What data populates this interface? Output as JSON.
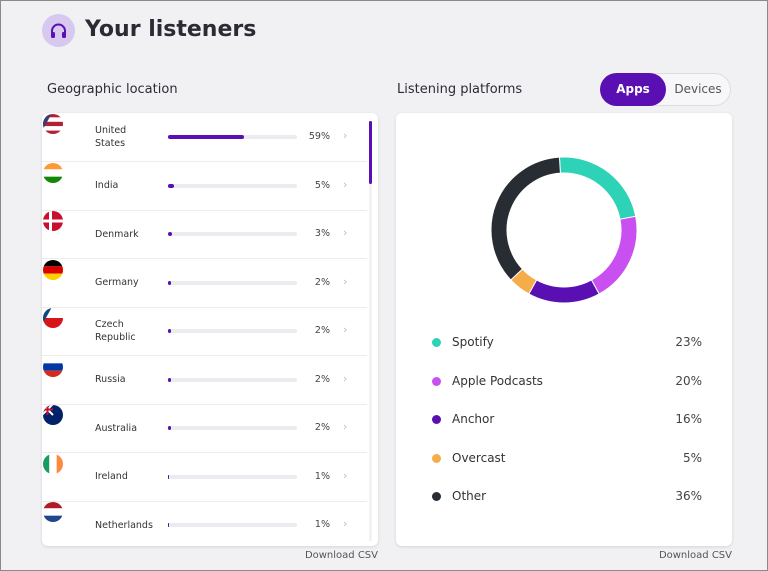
{
  "header": {
    "title": "Your listeners"
  },
  "geographic": {
    "title": "Geographic location",
    "countries": [
      {
        "name": "United States",
        "value": 59,
        "value_label": "59%"
      },
      {
        "name": "India",
        "value": 5,
        "value_label": "5%"
      },
      {
        "name": "Denmark",
        "value": 3,
        "value_label": "3%"
      },
      {
        "name": "Germany",
        "value": 2,
        "value_label": "2%"
      },
      {
        "name": "Czech Republic",
        "value": 2,
        "value_label": "2%"
      },
      {
        "name": "Russia",
        "value": 2,
        "value_label": "2%"
      },
      {
        "name": "Australia",
        "value": 2,
        "value_label": "2%"
      },
      {
        "name": "Ireland",
        "value": 1,
        "value_label": "1%"
      },
      {
        "name": "Netherlands",
        "value": 1,
        "value_label": "1%"
      }
    ],
    "download": "Download CSV"
  },
  "platforms": {
    "title": "Listening platforms",
    "tabs": [
      "Apps",
      "Devices"
    ],
    "active_tab": 0,
    "type": "donut",
    "series": [
      {
        "name": "Spotify",
        "color": "#2ed3b7",
        "value": 23,
        "value_label": "23%"
      },
      {
        "name": "Apple Podcasts",
        "color": "#c94ff0",
        "value": 20,
        "value_label": "20%"
      },
      {
        "name": "Anchor",
        "color": "#5a0fb3",
        "value": 16,
        "value_label": "16%"
      },
      {
        "name": "Overcast",
        "color": "#f5ad4a",
        "value": 5,
        "value_label": "5%"
      },
      {
        "name": "Other",
        "color": "#282c33",
        "value": 36,
        "value_label": "36%"
      }
    ],
    "download": "Download CSV"
  }
}
